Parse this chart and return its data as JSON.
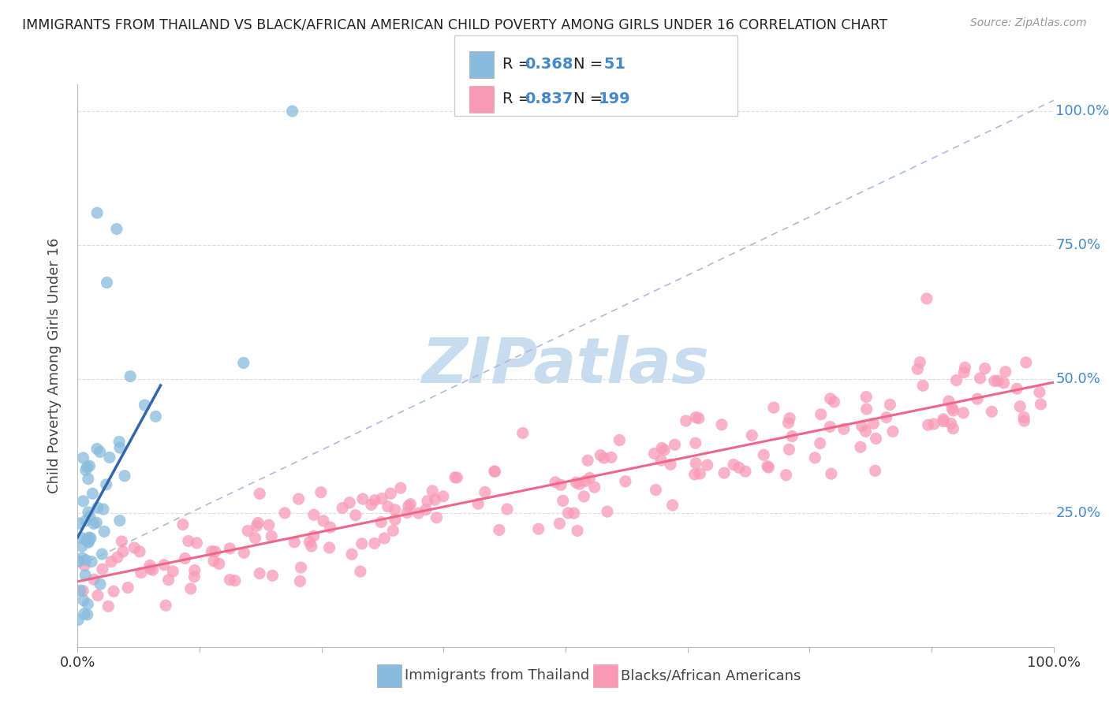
{
  "title": "IMMIGRANTS FROM THAILAND VS BLACK/AFRICAN AMERICAN CHILD POVERTY AMONG GIRLS UNDER 16 CORRELATION CHART",
  "source": "Source: ZipAtlas.com",
  "ylabel": "Child Poverty Among Girls Under 16",
  "blue_color": "#88bbdd",
  "pink_color": "#f899b5",
  "blue_line_color": "#3366aa",
  "pink_line_color": "#ee6688",
  "dashed_line_color": "#aabbdd",
  "watermark_color": "#c8dcf0",
  "right_label_color": "#4488cc",
  "R1": 0.368,
  "N1": 51,
  "R2": 0.837,
  "N2": 199,
  "background_color": "#ffffff",
  "grid_color": "#dddddd",
  "grid_style": "--"
}
